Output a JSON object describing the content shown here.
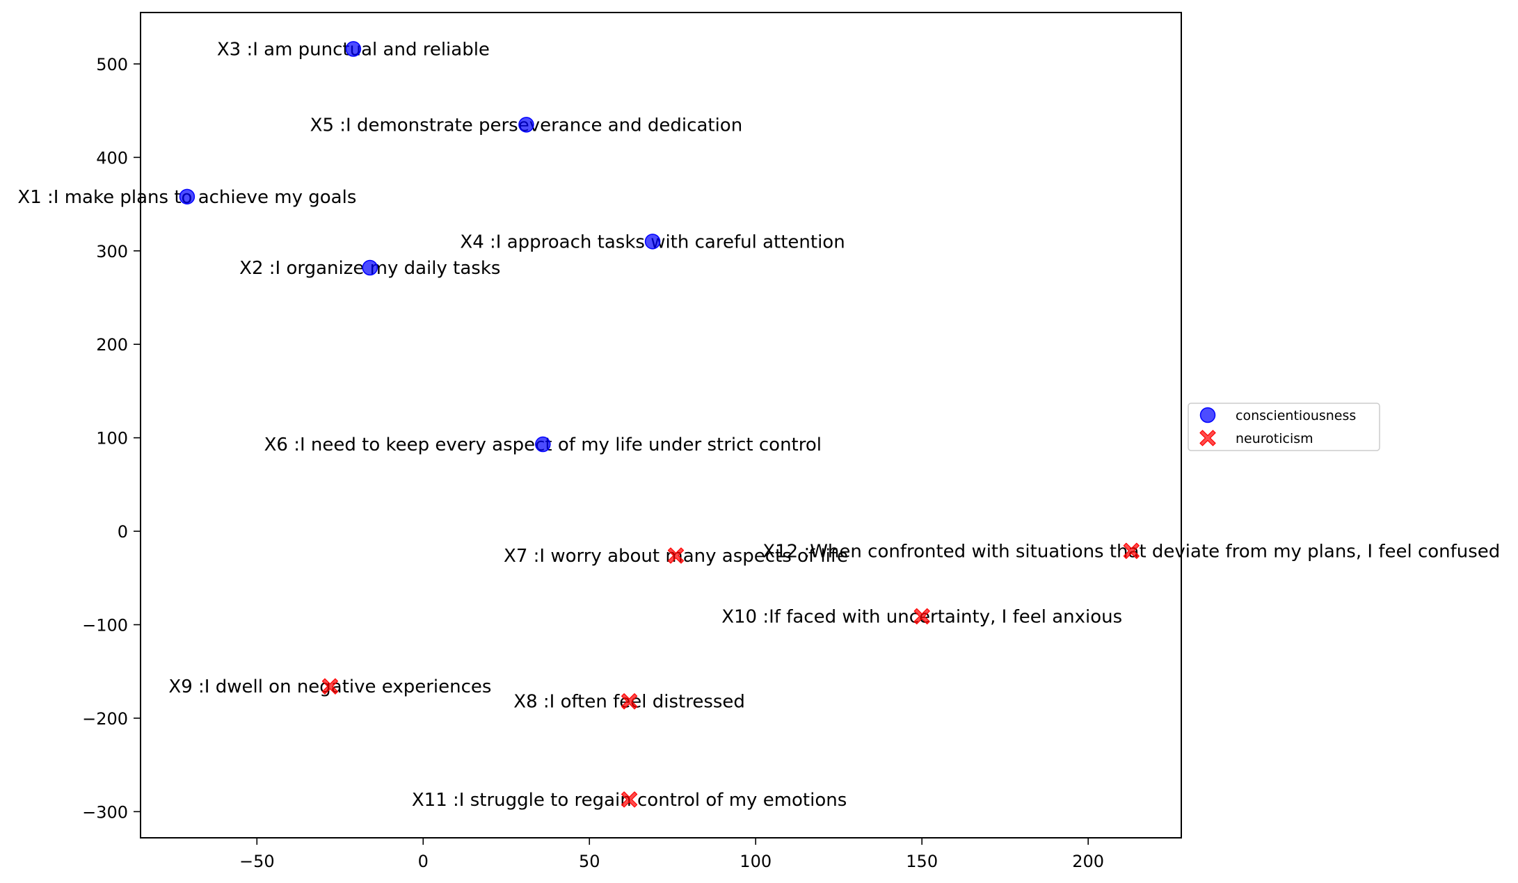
{
  "chart_data": {
    "type": "scatter",
    "title": "",
    "xlabel": "",
    "ylabel": "",
    "xlim": [
      -85,
      228
    ],
    "ylim": [
      -328,
      555
    ],
    "xticks": [
      -50,
      0,
      50,
      100,
      150,
      200
    ],
    "yticks": [
      -300,
      -200,
      -100,
      0,
      100,
      200,
      300,
      400,
      500
    ],
    "xtick_labels": [
      "−50",
      "0",
      "50",
      "100",
      "150",
      "200"
    ],
    "ytick_labels": [
      "−300",
      "−200",
      "−100",
      "0",
      "100",
      "200",
      "300",
      "400",
      "500"
    ],
    "grid": false,
    "legend_position": "center-right-outside",
    "series": [
      {
        "name": "conscientiousness",
        "marker": "circle",
        "color": "#0000ff",
        "points": [
          {
            "x": -71,
            "y": 358,
            "label": "X1 :I make plans to achieve my goals"
          },
          {
            "x": -16,
            "y": 282,
            "label": "X2 :I organize my daily tasks"
          },
          {
            "x": -21,
            "y": 516,
            "label": "X3 :I am punctual and reliable"
          },
          {
            "x": 69,
            "y": 310,
            "label": "X4 :I approach tasks with careful attention"
          },
          {
            "x": 31,
            "y": 435,
            "label": "X5 :I demonstrate perseverance and dedication"
          },
          {
            "x": 36,
            "y": 93,
            "label": "X6 :I need to keep every aspect of my life under strict control"
          }
        ]
      },
      {
        "name": "neuroticism",
        "marker": "x",
        "color": "#ff0000",
        "points": [
          {
            "x": 76,
            "y": -26,
            "label": "X7 :I worry about many aspects of life"
          },
          {
            "x": 62,
            "y": -182,
            "label": "X8 :I often feel distressed"
          },
          {
            "x": -28,
            "y": -166,
            "label": "X9 :I dwell on negative experiences"
          },
          {
            "x": 150,
            "y": -91,
            "label": "X10 :If faced with uncertainty, I feel anxious"
          },
          {
            "x": 62,
            "y": -287,
            "label": "X11 :I struggle to regain control of my emotions"
          },
          {
            "x": 213,
            "y": -21,
            "label": "X12 :When confronted with situations that deviate from my plans, I feel confused"
          }
        ]
      }
    ]
  }
}
